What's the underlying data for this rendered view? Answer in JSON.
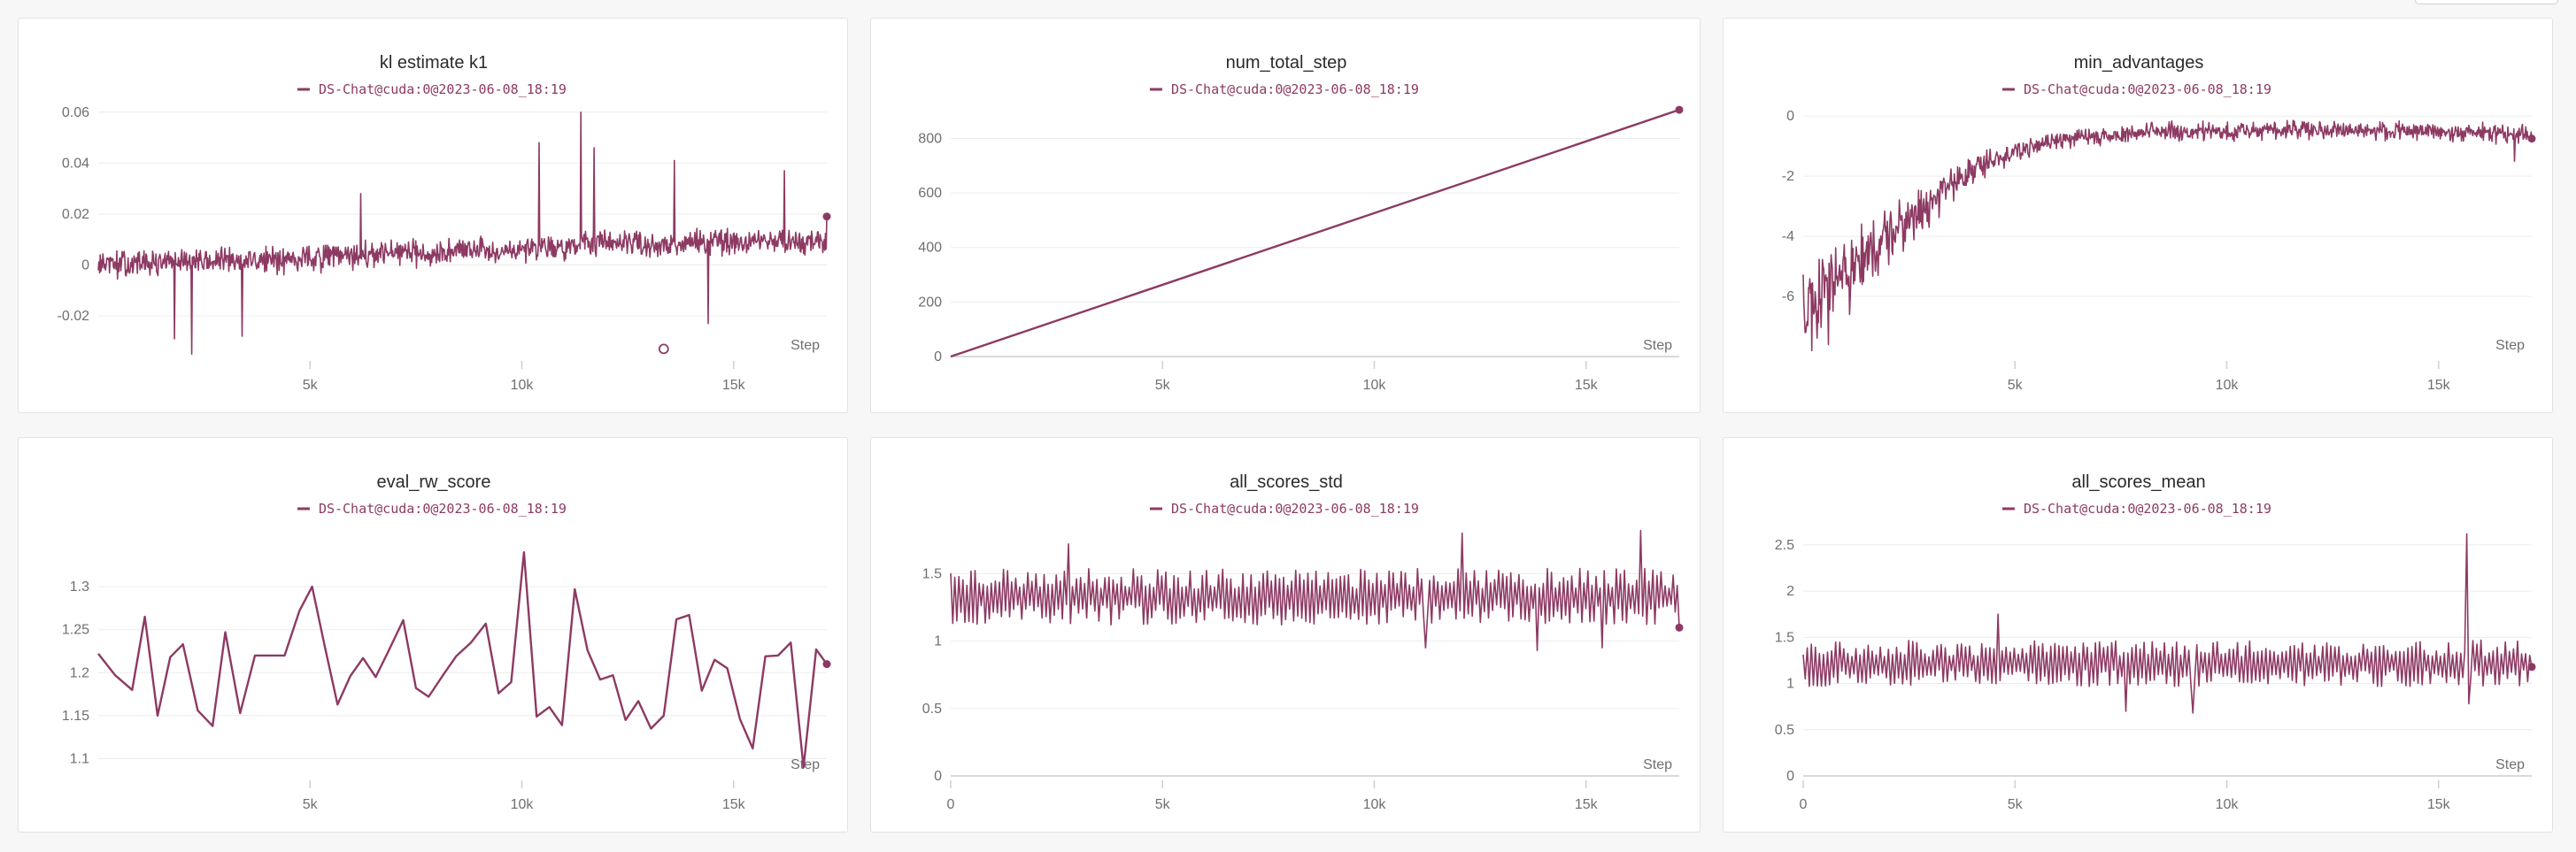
{
  "colors": {
    "series": "#8d3a63",
    "grid": "#ececec",
    "axis": "#d9d9d9",
    "text": "#6f6f6f"
  },
  "chart_data": [
    {
      "name": "kl estimate k1",
      "type": "line",
      "title": "kl estimate k1",
      "series": [
        {
          "name": "DS-Chat@cuda:0@2023-06-08_18:19",
          "noise": 0.0038,
          "style": "dense"
        }
      ],
      "xlabel": "Step",
      "xlim": [
        0,
        17200
      ],
      "ylim": [
        -0.036,
        0.062
      ],
      "x_ticks": [
        5000,
        10000,
        15000
      ],
      "x_tick_labels": [
        "5k",
        "10k",
        "15k"
      ],
      "y_ticks": [
        -0.02,
        0,
        0.02,
        0.04,
        0.06
      ],
      "y_tick_labels": [
        "-0.02",
        "0",
        "0.02",
        "0.04",
        "0.06"
      ],
      "points": [
        [
          0,
          0
        ],
        [
          2000,
          0.001
        ],
        [
          4000,
          0.002
        ],
        [
          6000,
          0.0035
        ],
        [
          8000,
          0.005
        ],
        [
          10000,
          0.0065
        ],
        [
          12000,
          0.008
        ],
        [
          14000,
          0.0085
        ],
        [
          17200,
          0.009
        ]
      ],
      "spikes": [
        [
          11400,
          0.06
        ],
        [
          10400,
          0.048
        ],
        [
          11700,
          0.046
        ],
        [
          13600,
          0.041
        ],
        [
          16200,
          0.037
        ],
        [
          14400,
          -0.023
        ],
        [
          2200,
          -0.035
        ],
        [
          1800,
          -0.029
        ],
        [
          3400,
          -0.028
        ],
        [
          6200,
          0.028
        ]
      ],
      "end_marker": [
        17200,
        0.019
      ],
      "hollow_marker": [
        13350,
        -0.033
      ],
      "grid": true,
      "zero_axis": false,
      "x_axis_at_zero": false
    },
    {
      "name": "num_total_step",
      "type": "line",
      "title": "num_total_step",
      "series": [
        {
          "name": "DS-Chat@cuda:0@2023-06-08_18:19",
          "noise": 0,
          "style": "smooth"
        }
      ],
      "xlabel": "Step",
      "xlim": [
        0,
        17200
      ],
      "ylim": [
        0,
        915
      ],
      "x_ticks": [
        5000,
        10000,
        15000
      ],
      "x_tick_labels": [
        "5k",
        "10k",
        "15k"
      ],
      "y_ticks": [
        0,
        200,
        400,
        600,
        800
      ],
      "y_tick_labels": [
        "0",
        "200",
        "400",
        "600",
        "800"
      ],
      "points": [
        [
          0,
          0
        ],
        [
          17200,
          905
        ]
      ],
      "spikes": [],
      "end_marker": [
        17200,
        905
      ],
      "grid": true,
      "zero_axis": false,
      "x_axis_at_zero": true
    },
    {
      "name": "min_advantages",
      "type": "line",
      "title": "min_advantages",
      "series": [
        {
          "name": "DS-Chat@cuda:0@2023-06-08_18:19",
          "noise": 0.22,
          "style": "dense"
        }
      ],
      "xlabel": "Step",
      "xlim": [
        0,
        17200
      ],
      "ylim": [
        -8,
        0.3
      ],
      "x_ticks": [
        5000,
        10000,
        15000
      ],
      "x_tick_labels": [
        "5k",
        "10k",
        "15k"
      ],
      "y_ticks": [
        -6,
        -4,
        -2,
        0
      ],
      "y_tick_labels": [
        "-6",
        "-4",
        "-2",
        "0"
      ],
      "points": [
        [
          0,
          -6.5
        ],
        [
          1000,
          -5.2
        ],
        [
          2000,
          -4.0
        ],
        [
          3000,
          -2.9
        ],
        [
          4000,
          -1.8
        ],
        [
          5000,
          -1.2
        ],
        [
          6000,
          -0.8
        ],
        [
          8000,
          -0.55
        ],
        [
          10000,
          -0.5
        ],
        [
          12000,
          -0.45
        ],
        [
          14000,
          -0.5
        ],
        [
          17200,
          -0.6
        ]
      ],
      "spikes": [
        [
          200,
          -7.8
        ],
        [
          600,
          -7.6
        ],
        [
          1100,
          -6.6
        ],
        [
          16800,
          -1.5
        ]
      ],
      "end_marker": [
        17200,
        -0.75
      ],
      "grid": true,
      "zero_axis": true,
      "x_axis_at_zero": false
    },
    {
      "name": "eval_rw_score",
      "type": "line",
      "title": "eval_rw_score",
      "series": [
        {
          "name": "DS-Chat@cuda:0@2023-06-08_18:19",
          "noise": 0,
          "style": "sparse"
        }
      ],
      "xlabel": "Step",
      "xlim": [
        0,
        17200
      ],
      "ylim": [
        1.08,
        1.37
      ],
      "x_ticks": [
        5000,
        10000,
        15000
      ],
      "x_tick_labels": [
        "5k",
        "10k",
        "15k"
      ],
      "y_ticks": [
        1.1,
        1.15,
        1.2,
        1.25,
        1.3
      ],
      "y_tick_labels": [
        "1.1",
        "1.15",
        "1.2",
        "1.25",
        "1.3"
      ],
      "points": [
        [
          0,
          1.222
        ],
        [
          400,
          1.197
        ],
        [
          800,
          1.18
        ],
        [
          1100,
          1.265
        ],
        [
          1400,
          1.15
        ],
        [
          1700,
          1.218
        ],
        [
          2000,
          1.233
        ],
        [
          2350,
          1.156
        ],
        [
          2700,
          1.138
        ],
        [
          3000,
          1.247
        ],
        [
          3350,
          1.153
        ],
        [
          3700,
          1.22
        ],
        [
          4050,
          1.22
        ],
        [
          4400,
          1.22
        ],
        [
          4750,
          1.272
        ],
        [
          5050,
          1.3
        ],
        [
          5350,
          1.23
        ],
        [
          5650,
          1.163
        ],
        [
          5950,
          1.196
        ],
        [
          6250,
          1.217
        ],
        [
          6550,
          1.195
        ],
        [
          6850,
          1.225
        ],
        [
          7200,
          1.261
        ],
        [
          7500,
          1.182
        ],
        [
          7800,
          1.172
        ],
        [
          8150,
          1.198
        ],
        [
          8450,
          1.219
        ],
        [
          8800,
          1.235
        ],
        [
          9150,
          1.257
        ],
        [
          9450,
          1.176
        ],
        [
          9750,
          1.189
        ],
        [
          10050,
          1.34
        ],
        [
          10350,
          1.149
        ],
        [
          10650,
          1.16
        ],
        [
          10950,
          1.139
        ],
        [
          11250,
          1.297
        ],
        [
          11550,
          1.226
        ],
        [
          11850,
          1.192
        ],
        [
          12150,
          1.197
        ],
        [
          12450,
          1.145
        ],
        [
          12750,
          1.167
        ],
        [
          13050,
          1.135
        ],
        [
          13350,
          1.15
        ],
        [
          13650,
          1.262
        ],
        [
          13950,
          1.267
        ],
        [
          14250,
          1.179
        ],
        [
          14550,
          1.215
        ],
        [
          14850,
          1.205
        ],
        [
          15150,
          1.146
        ],
        [
          15450,
          1.112
        ],
        [
          15750,
          1.219
        ],
        [
          16050,
          1.22
        ],
        [
          16350,
          1.235
        ],
        [
          16650,
          1.09
        ],
        [
          16950,
          1.227
        ],
        [
          17200,
          1.21
        ]
      ],
      "spikes": [],
      "end_marker": [
        17200,
        1.21
      ],
      "grid": true,
      "zero_axis": false,
      "x_axis_at_zero": false
    },
    {
      "name": "all_scores_std",
      "type": "line",
      "title": "all_scores_std",
      "series": [
        {
          "name": "DS-Chat@cuda:0@2023-06-08_18:19",
          "noise": 0.14,
          "style": "zigzag"
        }
      ],
      "xlabel": "Step",
      "xlim": [
        0,
        17200
      ],
      "ylim": [
        0,
        1.85
      ],
      "x_ticks": [
        0,
        5000,
        10000,
        15000
      ],
      "x_tick_labels": [
        "0",
        "5k",
        "10k",
        "15k"
      ],
      "y_ticks": [
        0,
        0.5,
        1,
        1.5
      ],
      "y_tick_labels": [
        "0",
        "0.5",
        "1",
        "1.5"
      ],
      "points": [
        [
          0,
          1.33
        ],
        [
          17200,
          1.33
        ]
      ],
      "spikes": [
        [
          16300,
          1.82
        ],
        [
          12050,
          1.8
        ],
        [
          2800,
          1.72
        ],
        [
          11200,
          0.95
        ],
        [
          13850,
          0.93
        ],
        [
          15400,
          0.95
        ]
      ],
      "end_marker": [
        17200,
        1.1
      ],
      "grid": true,
      "zero_axis": false,
      "x_axis_at_zero": true
    },
    {
      "name": "all_scores_mean",
      "type": "line",
      "title": "all_scores_mean",
      "series": [
        {
          "name": "DS-Chat@cuda:0@2023-06-08_18:19",
          "noise": 0.17,
          "style": "zigzag"
        }
      ],
      "xlabel": "Step",
      "xlim": [
        0,
        17200
      ],
      "ylim": [
        0,
        2.7
      ],
      "x_ticks": [
        0,
        5000,
        10000,
        15000
      ],
      "x_tick_labels": [
        "0",
        "5k",
        "10k",
        "15k"
      ],
      "y_ticks": [
        0,
        0.5,
        1,
        1.5,
        2,
        2.5
      ],
      "y_tick_labels": [
        "0",
        "0.5",
        "1",
        "1.5",
        "2",
        "2.5"
      ],
      "points": [
        [
          0,
          1.22
        ],
        [
          17200,
          1.22
        ]
      ],
      "spikes": [
        [
          15650,
          2.62
        ],
        [
          4600,
          1.75
        ],
        [
          7600,
          0.7
        ],
        [
          9200,
          0.68
        ],
        [
          15700,
          0.78
        ]
      ],
      "end_marker": [
        17200,
        1.18
      ],
      "grid": true,
      "zero_axis": false,
      "x_axis_at_zero": true
    }
  ]
}
